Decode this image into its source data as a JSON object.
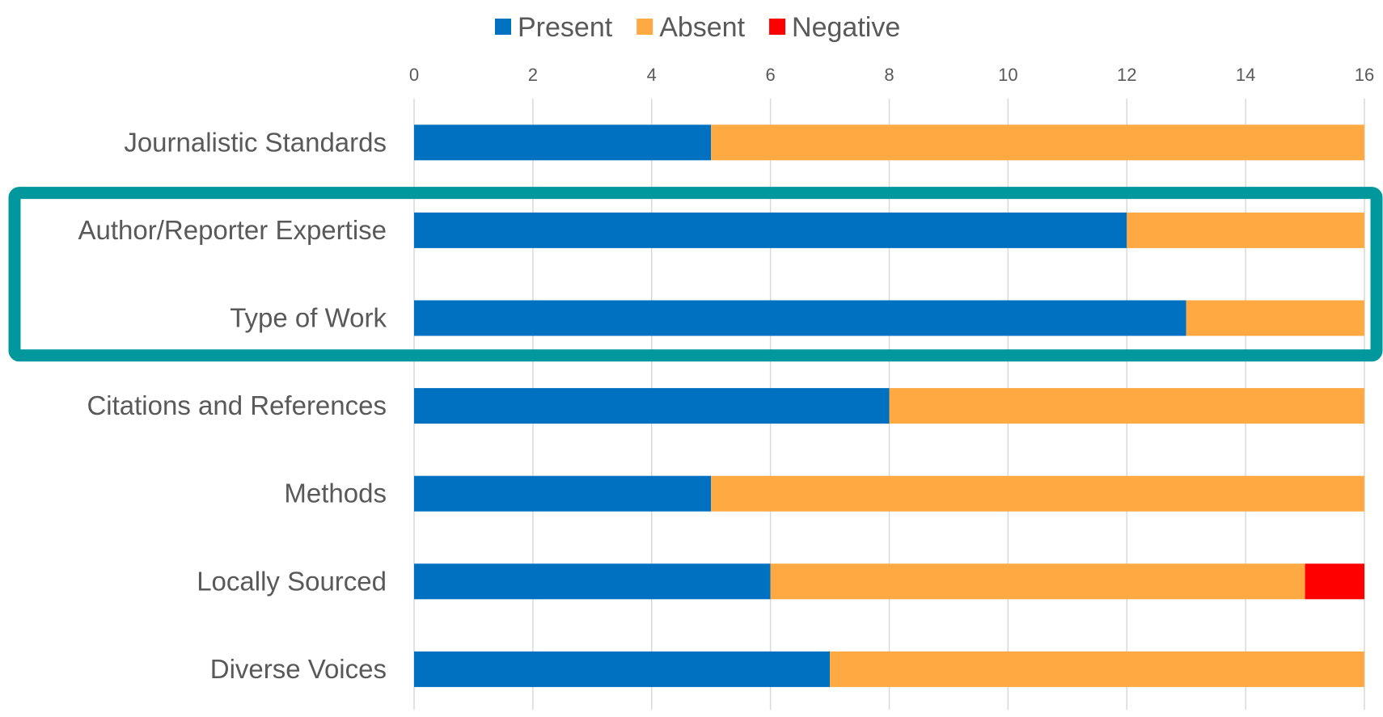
{
  "chart_data": {
    "type": "bar",
    "orientation": "horizontal",
    "stacked": true,
    "categories": [
      "Journalistic Standards",
      "Author/Reporter Expertise",
      "Type of Work",
      "Citations and References",
      "Methods",
      "Locally Sourced",
      "Diverse Voices"
    ],
    "series": [
      {
        "name": "Present",
        "color": "#0070C0",
        "values": [
          5,
          12,
          13,
          8,
          5,
          6,
          7
        ]
      },
      {
        "name": "Absent",
        "color": "#FFA943",
        "values": [
          11,
          4,
          3,
          8,
          11,
          9,
          9
        ]
      },
      {
        "name": "Negative",
        "color": "#FF0000",
        "values": [
          0,
          0,
          0,
          0,
          0,
          1,
          0
        ]
      }
    ],
    "xlim": [
      0,
      16
    ],
    "x_ticks": [
      0,
      2,
      4,
      6,
      8,
      10,
      12,
      14,
      16
    ],
    "x_axis_position": "top",
    "grid": true,
    "legend_position": "top-center",
    "highlight": {
      "categories": [
        "Author/Reporter Expertise",
        "Type of Work"
      ],
      "color": "#00979D"
    }
  }
}
